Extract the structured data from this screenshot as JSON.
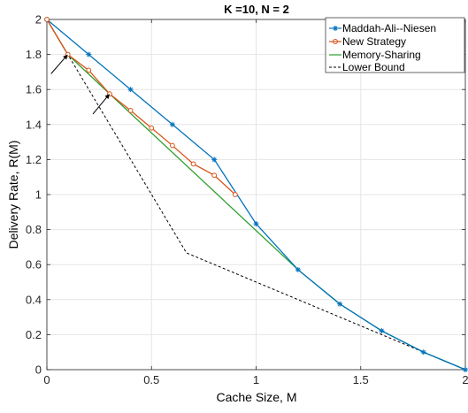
{
  "chart_data": {
    "type": "line",
    "title": "K =10, N = 2",
    "xlabel": "Cache Size, M",
    "ylabel": "Delivery Rate, R(M)",
    "xlim": [
      0,
      2
    ],
    "ylim": [
      0,
      2
    ],
    "grid": true,
    "legend_position": "top-right",
    "xticks": [
      {
        "value": 0,
        "label": "0"
      },
      {
        "value": 0.5,
        "label": "0.5"
      },
      {
        "value": 1,
        "label": "1"
      },
      {
        "value": 1.5,
        "label": "1.5"
      },
      {
        "value": 2,
        "label": "2"
      }
    ],
    "yticks": [
      {
        "value": 0,
        "label": "0"
      },
      {
        "value": 0.2,
        "label": "0.2"
      },
      {
        "value": 0.4,
        "label": "0.4"
      },
      {
        "value": 0.6,
        "label": "0.6"
      },
      {
        "value": 0.8,
        "label": "0.8"
      },
      {
        "value": 1,
        "label": "1"
      },
      {
        "value": 1.2,
        "label": "1.2"
      },
      {
        "value": 1.4,
        "label": "1.4"
      },
      {
        "value": 1.6,
        "label": "1.6"
      },
      {
        "value": 1.8,
        "label": "1.8"
      },
      {
        "value": 2,
        "label": "2"
      }
    ],
    "series": [
      {
        "name": "Maddah-Ali--Niesen",
        "color": "#0072bd",
        "marker": "asterisk",
        "dash": "solid",
        "x": [
          0,
          0.2,
          0.4,
          0.6,
          0.8,
          1.0,
          1.2,
          1.4,
          1.6,
          1.8,
          2.0
        ],
        "y": [
          2.0,
          1.8,
          1.6,
          1.4,
          1.2,
          0.833,
          0.571,
          0.375,
          0.222,
          0.1,
          0.0
        ]
      },
      {
        "name": "New Strategy",
        "color": "#d95319",
        "marker": "circle",
        "dash": "solid",
        "x": [
          0,
          0.1,
          0.2,
          0.3,
          0.4,
          0.5,
          0.6,
          0.7,
          0.8,
          0.9
        ],
        "y": [
          2.0,
          1.8,
          1.71,
          1.575,
          1.48,
          1.38,
          1.28,
          1.175,
          1.11,
          1.0
        ]
      },
      {
        "name": "Memory-Sharing",
        "color": "#2ca02c",
        "marker": "none",
        "dash": "solid",
        "x": [
          0,
          0.1,
          0.3,
          1.2,
          1.4,
          1.6,
          1.8,
          2.0
        ],
        "y": [
          2.0,
          1.8,
          1.575,
          0.571,
          0.375,
          0.222,
          0.1,
          0.0
        ]
      },
      {
        "name": "Lower Bound",
        "color": "#000000",
        "marker": "none",
        "dash": "dashed",
        "x": [
          0,
          0.667,
          2.0
        ],
        "y": [
          2.0,
          0.667,
          0.0
        ]
      }
    ],
    "annotations": [
      {
        "type": "arrow",
        "from": [
          0.02,
          1.69
        ],
        "to": [
          0.1,
          1.8
        ]
      },
      {
        "type": "arrow",
        "from": [
          0.22,
          1.46
        ],
        "to": [
          0.3,
          1.575
        ]
      }
    ]
  }
}
